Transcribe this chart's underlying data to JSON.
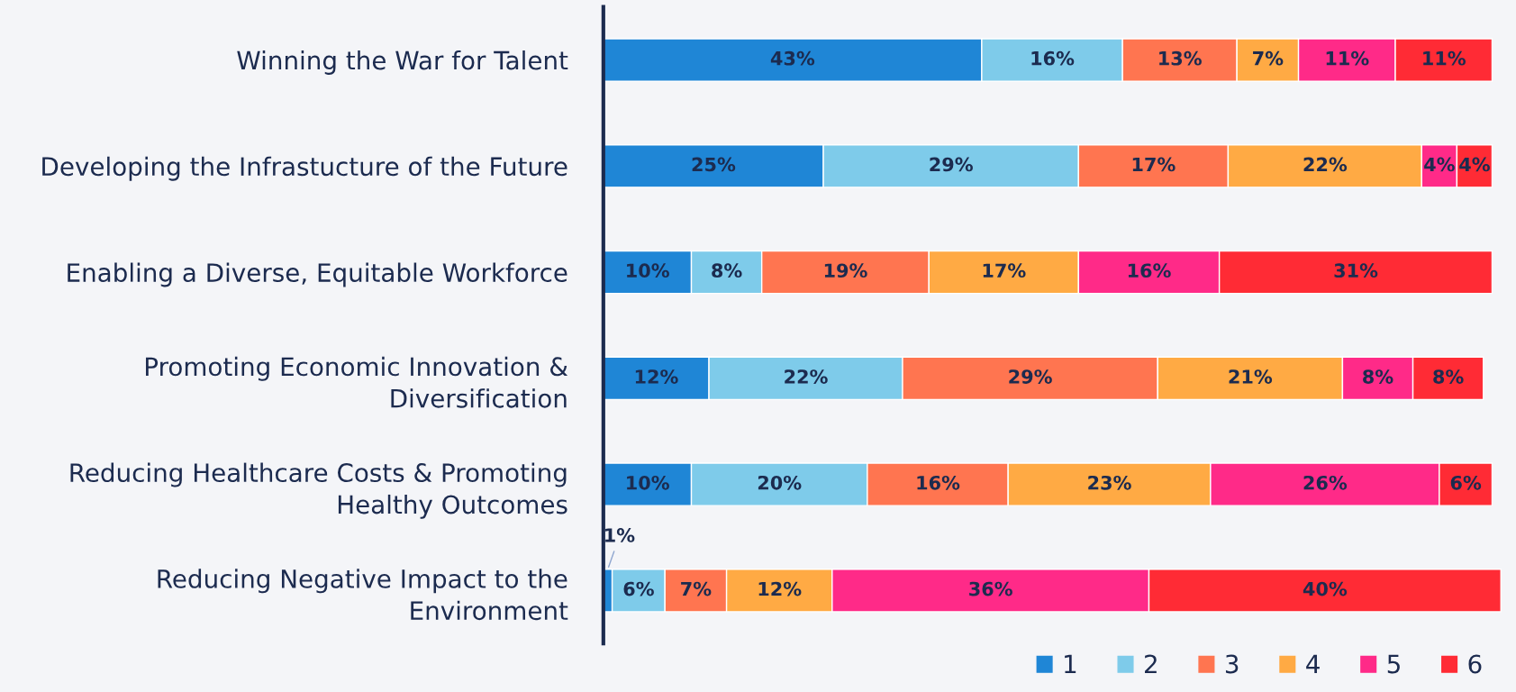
{
  "chart_data": {
    "type": "bar",
    "orientation": "horizontal",
    "stacked": true,
    "grid": false,
    "legend": "bottom right",
    "tick_labels": "y",
    "categories": [
      "Winning the War for Talent",
      "Developing the Infrastucture of the Future",
      "Enabling a Diverse, Equitable Workforce",
      "Promoting Economic Innovation &\nDiversification",
      "Reducing Healthcare Costs & Promoting\nHealthy Outcomes",
      "Reducing Negative Impact to the\nEnvironment"
    ],
    "series": [
      {
        "name": "1",
        "color": "#1f86d6",
        "values": [
          43,
          25,
          10,
          12,
          10,
          1
        ],
        "value_labels": [
          "43%",
          "25%",
          "10%",
          "12%",
          "10%",
          "1%"
        ]
      },
      {
        "name": "2",
        "color": "#7ecbea",
        "values": [
          16,
          29,
          8,
          22,
          20,
          6
        ],
        "value_labels": [
          "16%",
          "29%",
          "8%",
          "22%",
          "20%",
          "6%"
        ]
      },
      {
        "name": "3",
        "color": "#ff7550",
        "values": [
          13,
          17,
          19,
          29,
          16,
          7
        ],
        "value_labels": [
          "13%",
          "17%",
          "19%",
          "29%",
          "16%",
          "7%"
        ]
      },
      {
        "name": "4",
        "color": "#ffaa44",
        "values": [
          7,
          22,
          17,
          21,
          23,
          12
        ],
        "value_labels": [
          "7%",
          "22%",
          "17%",
          "21%",
          "23%",
          "12%"
        ]
      },
      {
        "name": "5",
        "color": "#ff2a88",
        "values": [
          11,
          4,
          16,
          8,
          26,
          36
        ],
        "value_labels": [
          "11%",
          "4%",
          "16%",
          "8%",
          "26%",
          "36%"
        ]
      },
      {
        "name": "6",
        "color": "#ff2b35",
        "values": [
          11,
          4,
          31,
          8,
          6,
          40
        ],
        "value_labels": [
          "11%",
          "4%",
          "31%",
          "8%",
          "6%",
          "40%"
        ]
      }
    ]
  }
}
